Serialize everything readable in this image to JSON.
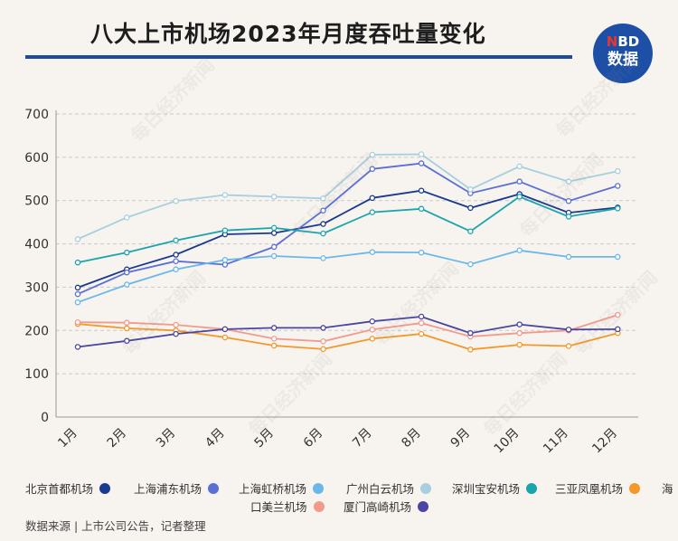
{
  "header": {
    "title": "八大上市机场2023年月度吞吐量变化",
    "logo_top_red": "N",
    "logo_top_rest": "BD",
    "logo_bottom": "数据"
  },
  "footer": {
    "source": "数据来源 | 上市公司公告，记者整理"
  },
  "watermark_text": "每日经济新闻",
  "chart_data": {
    "type": "line",
    "title": "八大上市机场2023年月度吞吐量变化",
    "xlabel": "",
    "ylabel": "",
    "ylim": [
      0,
      700
    ],
    "yticks": [
      0,
      100,
      200,
      300,
      400,
      500,
      600,
      700
    ],
    "grid": true,
    "legend_position": "bottom",
    "categories": [
      "1月",
      "2月",
      "3月",
      "4月",
      "5月",
      "6月",
      "7月",
      "8月",
      "9月",
      "10月",
      "11月",
      "12月"
    ],
    "series": [
      {
        "name": "北京首都机场",
        "color": "#1a3a8f",
        "values": [
          299,
          341,
          375,
          422,
          425,
          446,
          506,
          523,
          483,
          515,
          472,
          484
        ]
      },
      {
        "name": "上海浦东机场",
        "color": "#5b6fd6",
        "values": [
          284,
          334,
          360,
          352,
          393,
          477,
          573,
          586,
          517,
          544,
          499,
          534
        ]
      },
      {
        "name": "上海虹桥机场",
        "color": "#6ab8ea",
        "values": [
          265,
          306,
          341,
          363,
          372,
          367,
          381,
          380,
          353,
          385,
          370,
          370
        ]
      },
      {
        "name": "广州白云机场",
        "color": "#a6cfdf",
        "values": [
          411,
          461,
          499,
          513,
          509,
          505,
          606,
          607,
          526,
          579,
          544,
          568
        ]
      },
      {
        "name": "深圳宝安机场",
        "color": "#1aa5ad",
        "values": [
          357,
          380,
          408,
          431,
          437,
          424,
          473,
          481,
          429,
          509,
          463,
          482
        ]
      },
      {
        "name": "三亚凤凰机场",
        "color": "#f4982a",
        "values": [
          215,
          205,
          200,
          184,
          165,
          157,
          181,
          192,
          156,
          167,
          164,
          194
        ]
      },
      {
        "name": "海口美兰机场",
        "color": "#f29a8c",
        "values": [
          219,
          218,
          213,
          203,
          181,
          175,
          202,
          217,
          186,
          194,
          200,
          236
        ]
      },
      {
        "name": "厦门高崎机场",
        "color": "#4a45a2",
        "values": [
          162,
          176,
          192,
          203,
          206,
          206,
          221,
          232,
          194,
          214,
          202,
          203
        ]
      }
    ]
  }
}
